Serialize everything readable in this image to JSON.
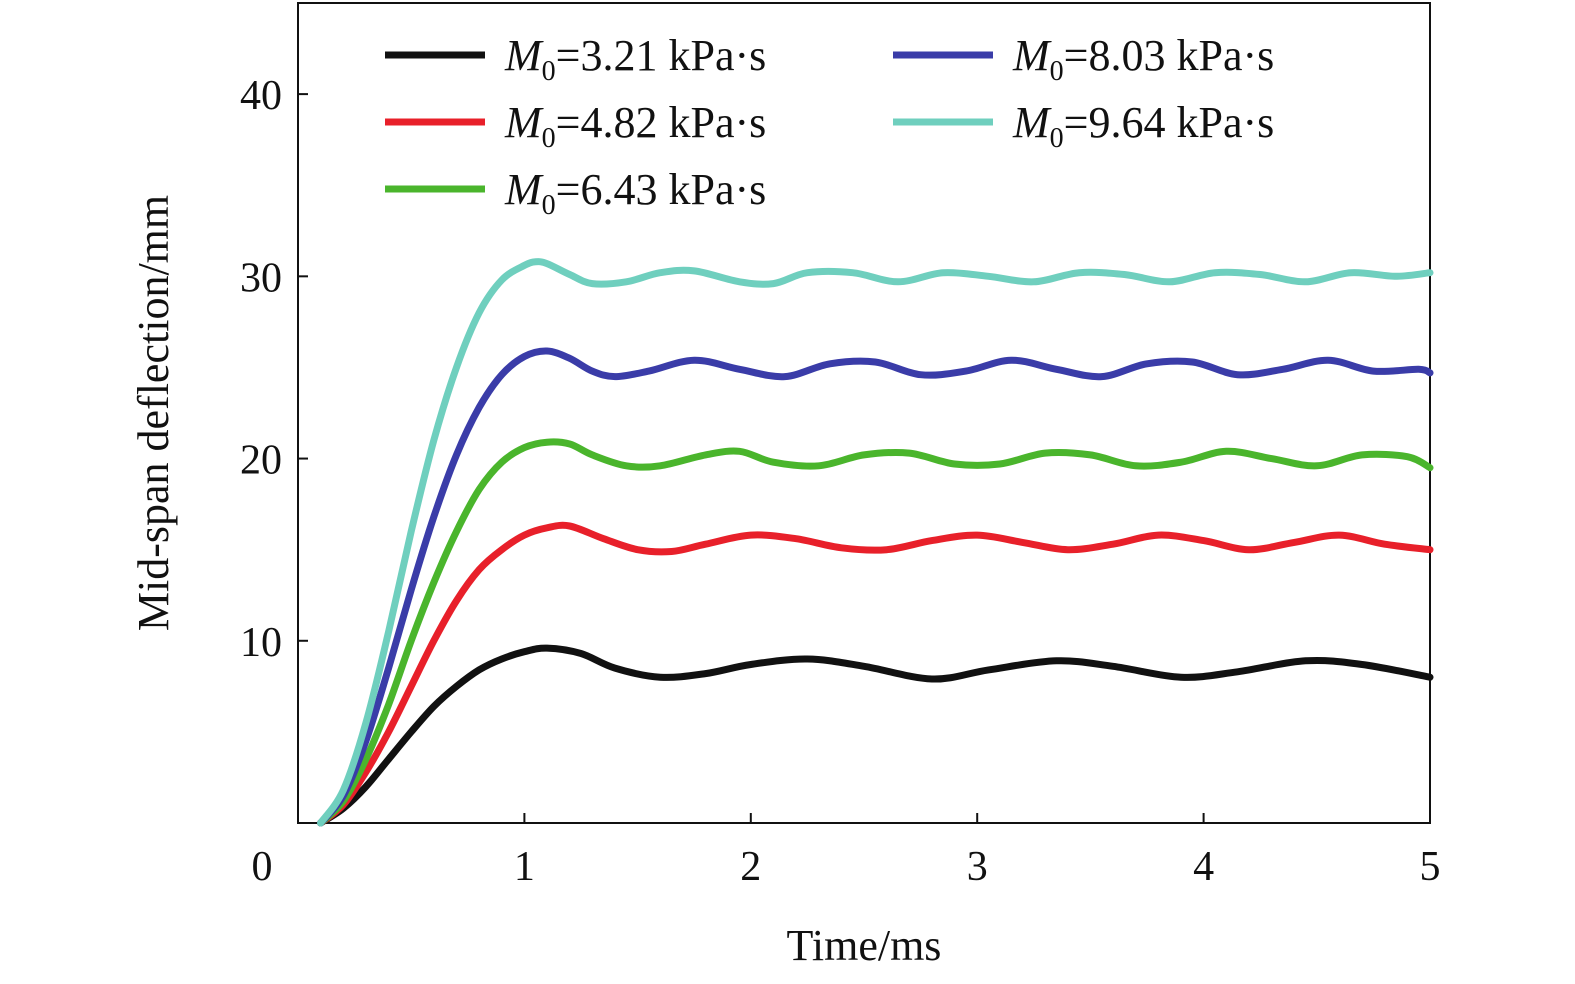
{
  "chart_data": {
    "type": "line",
    "xlabel": "Time/ms",
    "ylabel": "Mid-span deflection/mm",
    "xlim": [
      0,
      5
    ],
    "ylim": [
      0,
      45
    ],
    "x_ticks": [
      0,
      1,
      2,
      3,
      4,
      5
    ],
    "y_ticks": [
      10,
      20,
      30,
      40
    ],
    "grid": false,
    "legend_position": "top",
    "series": [
      {
        "name": "M0=3.21 kPa·s",
        "label_symbol": "M",
        "label_sub": "0",
        "label_rest": "=3.21 kPa·s",
        "color": "#111111",
        "x": [
          0.1,
          0.2,
          0.3,
          0.4,
          0.5,
          0.6,
          0.7,
          0.8,
          0.9,
          1.0,
          1.1,
          1.25,
          1.4,
          1.6,
          1.8,
          2.0,
          2.25,
          2.5,
          2.8,
          3.05,
          3.35,
          3.6,
          3.9,
          4.15,
          4.45,
          4.7,
          5.0
        ],
        "y": [
          0,
          0.8,
          2.0,
          3.5,
          5.0,
          6.4,
          7.5,
          8.4,
          9.0,
          9.4,
          9.6,
          9.3,
          8.5,
          8.0,
          8.2,
          8.7,
          9.0,
          8.6,
          7.9,
          8.4,
          8.9,
          8.6,
          8.0,
          8.3,
          8.9,
          8.7,
          8.0
        ]
      },
      {
        "name": "M0=4.82 kPa·s",
        "label_symbol": "M",
        "label_sub": "0",
        "label_rest": "=4.82 kPa·s",
        "color": "#e8202a",
        "x": [
          0.1,
          0.2,
          0.3,
          0.4,
          0.5,
          0.6,
          0.7,
          0.8,
          0.9,
          1.0,
          1.1,
          1.2,
          1.35,
          1.5,
          1.65,
          1.8,
          2.0,
          2.2,
          2.4,
          2.6,
          2.8,
          3.0,
          3.2,
          3.4,
          3.6,
          3.8,
          4.0,
          4.2,
          4.4,
          4.6,
          4.8,
          5.0
        ],
        "y": [
          0,
          1.0,
          2.8,
          5.0,
          7.5,
          10.0,
          12.2,
          13.9,
          15.0,
          15.8,
          16.2,
          16.3,
          15.6,
          15.0,
          14.9,
          15.3,
          15.8,
          15.6,
          15.1,
          15.0,
          15.5,
          15.8,
          15.4,
          15.0,
          15.3,
          15.8,
          15.5,
          15.0,
          15.4,
          15.8,
          15.3,
          15.0
        ]
      },
      {
        "name": "M0=6.43 kPa·s",
        "label_symbol": "M",
        "label_sub": "0",
        "label_rest": "=6.43 kPa·s",
        "color": "#4ab52c",
        "x": [
          0.1,
          0.2,
          0.3,
          0.4,
          0.5,
          0.6,
          0.7,
          0.8,
          0.9,
          1.0,
          1.1,
          1.2,
          1.3,
          1.45,
          1.6,
          1.8,
          1.95,
          2.1,
          2.3,
          2.5,
          2.7,
          2.9,
          3.1,
          3.3,
          3.5,
          3.7,
          3.9,
          4.1,
          4.3,
          4.5,
          4.7,
          4.9,
          5.0
        ],
        "y": [
          0,
          1.2,
          3.5,
          6.5,
          10.0,
          13.2,
          16.0,
          18.3,
          19.8,
          20.6,
          20.9,
          20.8,
          20.2,
          19.6,
          19.6,
          20.2,
          20.4,
          19.8,
          19.6,
          20.2,
          20.3,
          19.7,
          19.7,
          20.3,
          20.2,
          19.6,
          19.8,
          20.4,
          20.0,
          19.6,
          20.2,
          20.1,
          19.5
        ]
      },
      {
        "name": "M0=8.03 kPa·s",
        "label_symbol": "M",
        "label_sub": "0",
        "label_rest": "=8.03 kPa·s",
        "color": "#3a3ca8",
        "x": [
          0.1,
          0.2,
          0.3,
          0.4,
          0.5,
          0.6,
          0.7,
          0.8,
          0.9,
          1.0,
          1.1,
          1.2,
          1.3,
          1.4,
          1.55,
          1.75,
          1.95,
          2.15,
          2.35,
          2.55,
          2.75,
          2.95,
          3.15,
          3.35,
          3.55,
          3.75,
          3.95,
          4.15,
          4.35,
          4.55,
          4.75,
          4.95,
          5.0
        ],
        "y": [
          0,
          1.5,
          4.5,
          8.5,
          12.8,
          16.8,
          20.2,
          22.8,
          24.6,
          25.6,
          25.9,
          25.5,
          24.8,
          24.5,
          24.8,
          25.4,
          24.9,
          24.5,
          25.2,
          25.3,
          24.6,
          24.8,
          25.4,
          24.9,
          24.5,
          25.2,
          25.3,
          24.6,
          24.9,
          25.4,
          24.8,
          24.9,
          24.7
        ]
      },
      {
        "name": "M0=9.64 kPa·s",
        "label_symbol": "M",
        "label_sub": "0",
        "label_rest": "=9.64 kPa·s",
        "color": "#6fcfbe",
        "x": [
          0.1,
          0.2,
          0.3,
          0.4,
          0.5,
          0.6,
          0.7,
          0.8,
          0.9,
          1.0,
          1.05,
          1.1,
          1.2,
          1.3,
          1.45,
          1.6,
          1.75,
          1.95,
          2.1,
          2.25,
          2.45,
          2.65,
          2.85,
          3.05,
          3.25,
          3.45,
          3.65,
          3.85,
          4.05,
          4.25,
          4.45,
          4.65,
          4.85,
          5.0
        ],
        "y": [
          0,
          1.8,
          5.5,
          10.5,
          16.0,
          21.0,
          25.0,
          28.0,
          29.8,
          30.6,
          30.8,
          30.7,
          30.1,
          29.6,
          29.7,
          30.2,
          30.3,
          29.7,
          29.6,
          30.2,
          30.2,
          29.7,
          30.2,
          30.0,
          29.7,
          30.2,
          30.1,
          29.7,
          30.2,
          30.1,
          29.7,
          30.2,
          30.0,
          30.2
        ]
      }
    ]
  }
}
